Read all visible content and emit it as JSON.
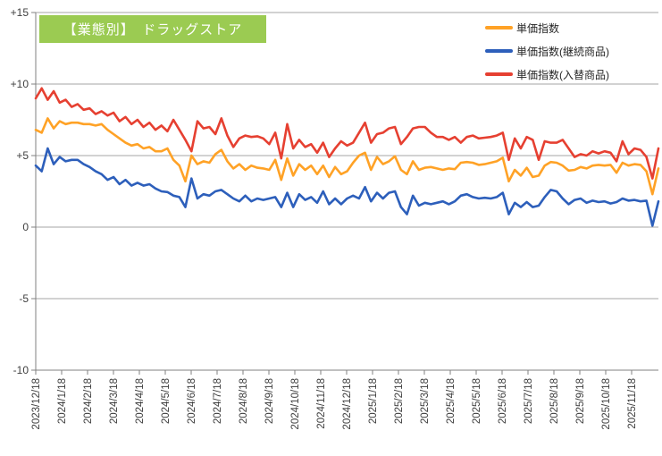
{
  "header": {
    "title": "【業態別】　ドラッグストア",
    "box_color": "#9BCB52",
    "text_color": "#FFFFFF"
  },
  "legend": {
    "position": "top-right",
    "items": [
      {
        "label": "単価指数",
        "color": "#FFA226"
      },
      {
        "label": "単価指数(継続商品)",
        "color": "#2D5FBB"
      },
      {
        "label": "単価指数(入替商品)",
        "color": "#E64031"
      }
    ]
  },
  "chart_data": {
    "type": "line",
    "title": "【業態別】　ドラッグストア",
    "xlabel": "",
    "ylabel": "",
    "ylim": [
      -10,
      15
    ],
    "grid": "horizontal",
    "legend_position": "top-right",
    "yticks": [
      {
        "value": 15,
        "label": "+15"
      },
      {
        "value": 10,
        "label": "+10"
      },
      {
        "value": 5,
        "label": "+5"
      },
      {
        "value": 0,
        "label": "0"
      },
      {
        "value": -5,
        "label": "-5"
      },
      {
        "value": -10,
        "label": "-10"
      }
    ],
    "x_labels": [
      "2023/12/18",
      "2024/1/18",
      "2024/2/18",
      "2024/3/18",
      "2024/4/18",
      "2024/5/18",
      "2024/6/18",
      "2024/7/18",
      "2024/8/18",
      "2024/9/18",
      "2024/10/18",
      "2024/11/18",
      "2024/12/18",
      "2025/1/18",
      "2025/2/18",
      "2025/3/18",
      "2025/4/18",
      "2025/5/18",
      "2025/6/18",
      "2025/7/18",
      "2025/8/18",
      "2025/9/18",
      "2025/10/18",
      "2025/11/18"
    ],
    "x_interval": "weekly",
    "colors": {
      "grid": "#A6A6A6",
      "axis": "#808080",
      "tick_text": "#3F3F3F"
    },
    "series": [
      {
        "name": "単価指数",
        "color": "#FFA226",
        "values": [
          6.8,
          6.6,
          7.6,
          6.9,
          7.4,
          7.2,
          7.3,
          7.3,
          7.2,
          7.2,
          7.1,
          7.2,
          6.8,
          6.5,
          6.2,
          5.9,
          5.7,
          5.8,
          5.5,
          5.6,
          5.3,
          5.3,
          5.5,
          4.7,
          4.3,
          3.2,
          5.0,
          4.4,
          4.6,
          4.5,
          5.1,
          5.4,
          4.6,
          4.1,
          4.4,
          4.0,
          4.3,
          4.15,
          4.1,
          4.0,
          4.7,
          3.3,
          4.8,
          3.6,
          4.4,
          4.0,
          4.3,
          3.7,
          4.3,
          3.5,
          4.2,
          3.7,
          3.9,
          4.5,
          5.0,
          5.2,
          4.0,
          4.9,
          4.4,
          4.6,
          4.95,
          4.0,
          3.7,
          4.6,
          4.0,
          4.15,
          4.2,
          4.1,
          4.0,
          4.1,
          4.05,
          4.5,
          4.55,
          4.5,
          4.35,
          4.4,
          4.5,
          4.6,
          4.85,
          3.2,
          4.0,
          3.6,
          4.15,
          3.5,
          3.6,
          4.3,
          4.55,
          4.5,
          4.3,
          3.95,
          4.0,
          4.2,
          4.1,
          4.3,
          4.35,
          4.3,
          4.35,
          3.8,
          4.5,
          4.3,
          4.4,
          4.35,
          3.9,
          2.3,
          4.1
        ]
      },
      {
        "name": "単価指数(継続商品)",
        "color": "#2D5FBB",
        "values": [
          4.3,
          3.9,
          5.5,
          4.4,
          4.9,
          4.6,
          4.7,
          4.7,
          4.4,
          4.2,
          3.9,
          3.7,
          3.3,
          3.5,
          3.0,
          3.3,
          2.9,
          3.1,
          2.9,
          3.0,
          2.7,
          2.5,
          2.45,
          2.2,
          2.1,
          1.4,
          3.4,
          2.0,
          2.3,
          2.2,
          2.5,
          2.6,
          2.3,
          2.0,
          1.8,
          2.2,
          1.8,
          2.0,
          1.9,
          2.0,
          2.1,
          1.4,
          2.4,
          1.4,
          2.3,
          1.9,
          2.1,
          1.7,
          2.5,
          1.6,
          2.0,
          1.6,
          2.0,
          2.2,
          2.0,
          2.8,
          1.8,
          2.4,
          2.0,
          2.4,
          2.5,
          1.4,
          0.9,
          2.2,
          1.5,
          1.7,
          1.6,
          1.7,
          1.8,
          1.6,
          1.8,
          2.2,
          2.3,
          2.1,
          2.0,
          2.05,
          2.0,
          2.1,
          2.4,
          0.9,
          1.7,
          1.4,
          1.75,
          1.4,
          1.5,
          2.1,
          2.6,
          2.5,
          2.0,
          1.6,
          1.9,
          2.0,
          1.7,
          1.85,
          1.75,
          1.8,
          1.65,
          1.75,
          2.0,
          1.85,
          1.9,
          1.8,
          1.85,
          0.1,
          1.8
        ]
      },
      {
        "name": "単価指数(入替商品)",
        "color": "#E64031",
        "values": [
          9.0,
          9.7,
          8.9,
          9.5,
          8.7,
          8.9,
          8.4,
          8.6,
          8.2,
          8.3,
          7.9,
          8.1,
          7.8,
          8.0,
          7.4,
          7.7,
          7.2,
          7.5,
          7.0,
          7.3,
          6.8,
          7.1,
          6.7,
          7.5,
          6.8,
          6.1,
          5.3,
          7.4,
          6.9,
          7.0,
          6.5,
          7.6,
          6.4,
          5.6,
          6.2,
          6.4,
          6.3,
          6.35,
          6.2,
          5.8,
          6.6,
          4.8,
          7.2,
          5.5,
          6.1,
          5.6,
          5.8,
          5.2,
          5.9,
          4.9,
          5.5,
          6.0,
          5.7,
          5.9,
          6.6,
          7.3,
          5.9,
          6.5,
          6.6,
          6.9,
          7.0,
          5.8,
          6.3,
          6.9,
          7.0,
          7.0,
          6.6,
          6.3,
          6.3,
          6.1,
          6.3,
          5.9,
          6.3,
          6.4,
          6.2,
          6.25,
          6.3,
          6.4,
          6.6,
          4.7,
          6.2,
          5.5,
          6.3,
          6.1,
          4.7,
          6.0,
          5.9,
          5.9,
          6.1,
          5.5,
          4.9,
          5.1,
          5.0,
          5.3,
          5.15,
          5.3,
          5.2,
          4.6,
          6.0,
          5.1,
          5.5,
          5.4,
          4.9,
          3.4,
          5.5
        ]
      }
    ]
  }
}
